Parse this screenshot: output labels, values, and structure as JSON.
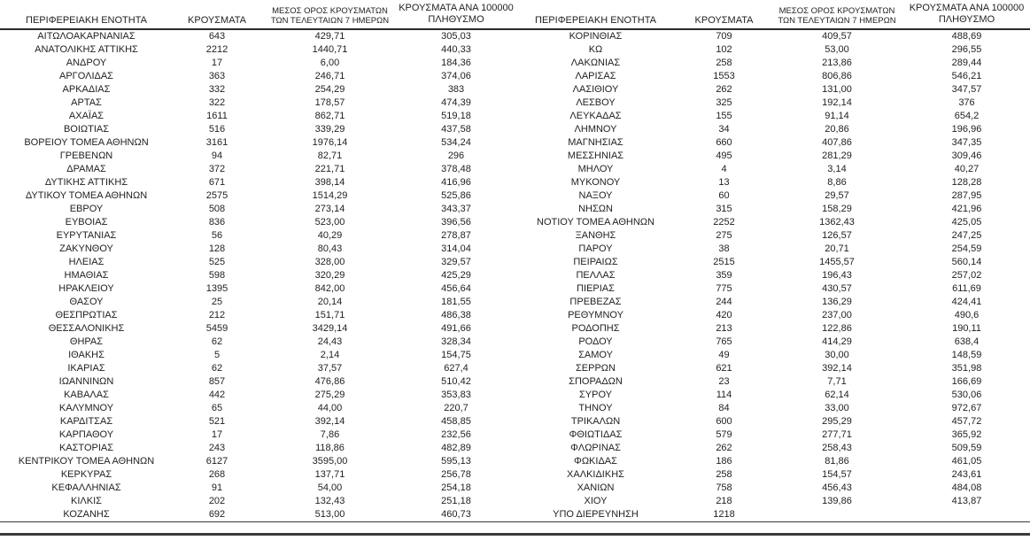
{
  "table": {
    "column_headers": {
      "region": "ΠΕΡΙΦΕΡΕΙΑΚΗ ΕΝΟΤΗΤΑ",
      "cases": "ΚΡΟΥΣΜΑΤΑ",
      "avg7_line1": "ΜΕΣΟΣ ΟΡΟΣ ΚΡΟΥΣΜΑΤΩΝ",
      "avg7_line2": "ΤΩΝ ΤΕΛΕΥΤΑΙΩΝ 7 ΗΜΕΡΩΝ",
      "per100k_line1": "ΚΡΟΥΣΜΑΤΑ ΑΝΑ 100000",
      "per100k_line2": "ΠΛΗΘΥΣΜΟ"
    },
    "left_rows": [
      [
        "ΑΙΤΩΛΟΑΚΑΡΝΑΝΙΑΣ",
        "643",
        "429,71",
        "305,03"
      ],
      [
        "ΑΝΑΤΟΛΙΚΗΣ ΑΤΤΙΚΗΣ",
        "2212",
        "1440,71",
        "440,33"
      ],
      [
        "ΑΝΔΡΟΥ",
        "17",
        "6,00",
        "184,36"
      ],
      [
        "ΑΡΓΟΛΙΔΑΣ",
        "363",
        "246,71",
        "374,06"
      ],
      [
        "ΑΡΚΑΔΙΑΣ",
        "332",
        "254,29",
        "383"
      ],
      [
        "ΑΡΤΑΣ",
        "322",
        "178,57",
        "474,39"
      ],
      [
        "ΑΧΑΪΑΣ",
        "1611",
        "862,71",
        "519,18"
      ],
      [
        "ΒΟΙΩΤΙΑΣ",
        "516",
        "339,29",
        "437,58"
      ],
      [
        "ΒΟΡΕΙΟΥ ΤΟΜΕΑ ΑΘΗΝΩΝ",
        "3161",
        "1976,14",
        "534,24"
      ],
      [
        "ΓΡΕΒΕΝΩΝ",
        "94",
        "82,71",
        "296"
      ],
      [
        "ΔΡΑΜΑΣ",
        "372",
        "221,71",
        "378,48"
      ],
      [
        "ΔΥΤΙΚΗΣ ΑΤΤΙΚΗΣ",
        "671",
        "398,14",
        "416,96"
      ],
      [
        "ΔΥΤΙΚΟΥ ΤΟΜΕΑ ΑΘΗΝΩΝ",
        "2575",
        "1514,29",
        "525,86"
      ],
      [
        "ΕΒΡΟΥ",
        "508",
        "273,14",
        "343,37"
      ],
      [
        "ΕΥΒΟΙΑΣ",
        "836",
        "523,00",
        "396,56"
      ],
      [
        "ΕΥΡΥΤΑΝΙΑΣ",
        "56",
        "40,29",
        "278,87"
      ],
      [
        "ΖΑΚΥΝΘΟΥ",
        "128",
        "80,43",
        "314,04"
      ],
      [
        "ΗΛΕΙΑΣ",
        "525",
        "328,00",
        "329,57"
      ],
      [
        "ΗΜΑΘΙΑΣ",
        "598",
        "320,29",
        "425,29"
      ],
      [
        "ΗΡΑΚΛΕΙΟΥ",
        "1395",
        "842,00",
        "456,64"
      ],
      [
        "ΘΑΣΟΥ",
        "25",
        "20,14",
        "181,55"
      ],
      [
        "ΘΕΣΠΡΩΤΙΑΣ",
        "212",
        "151,71",
        "486,38"
      ],
      [
        "ΘΕΣΣΑΛΟΝΙΚΗΣ",
        "5459",
        "3429,14",
        "491,66"
      ],
      [
        "ΘΗΡΑΣ",
        "62",
        "24,43",
        "328,34"
      ],
      [
        "ΙΘΑΚΗΣ",
        "5",
        "2,14",
        "154,75"
      ],
      [
        "ΙΚΑΡΙΑΣ",
        "62",
        "37,57",
        "627,4"
      ],
      [
        "ΙΩΑΝΝΙΝΩΝ",
        "857",
        "476,86",
        "510,42"
      ],
      [
        "ΚΑΒΑΛΑΣ",
        "442",
        "275,29",
        "353,83"
      ],
      [
        "ΚΑΛΥΜΝΟΥ",
        "65",
        "44,00",
        "220,7"
      ],
      [
        "ΚΑΡΔΙΤΣΑΣ",
        "521",
        "392,14",
        "458,85"
      ],
      [
        "ΚΑΡΠΑΘΟΥ",
        "17",
        "7,86",
        "232,56"
      ],
      [
        "ΚΑΣΤΟΡΙΑΣ",
        "243",
        "118,86",
        "482,89"
      ],
      [
        "ΚΕΝΤΡΙΚΟΥ ΤΟΜΕΑ ΑΘΗΝΩΝ",
        "6127",
        "3595,00",
        "595,13"
      ],
      [
        "ΚΕΡΚΥΡΑΣ",
        "268",
        "137,71",
        "256,78"
      ],
      [
        "ΚΕΦΑΛΛΗΝΙΑΣ",
        "91",
        "54,00",
        "254,18"
      ],
      [
        "ΚΙΛΚΙΣ",
        "202",
        "132,43",
        "251,18"
      ],
      [
        "ΚΟΖΑΝΗΣ",
        "692",
        "513,00",
        "460,73"
      ]
    ],
    "right_rows": [
      [
        "ΚΟΡΙΝΘΙΑΣ",
        "709",
        "409,57",
        "488,69"
      ],
      [
        "ΚΩ",
        "102",
        "53,00",
        "296,55"
      ],
      [
        "ΛΑΚΩΝΙΑΣ",
        "258",
        "213,86",
        "289,44"
      ],
      [
        "ΛΑΡΙΣΑΣ",
        "1553",
        "806,86",
        "546,21"
      ],
      [
        "ΛΑΣΙΘΙΟΥ",
        "262",
        "131,00",
        "347,57"
      ],
      [
        "ΛΕΣΒΟΥ",
        "325",
        "192,14",
        "376"
      ],
      [
        "ΛΕΥΚΑΔΑΣ",
        "155",
        "91,14",
        "654,2"
      ],
      [
        "ΛΗΜΝΟΥ",
        "34",
        "20,86",
        "196,96"
      ],
      [
        "ΜΑΓΝΗΣΙΑΣ",
        "660",
        "407,86",
        "347,35"
      ],
      [
        "ΜΕΣΣΗΝΙΑΣ",
        "495",
        "281,29",
        "309,46"
      ],
      [
        "ΜΗΛΟΥ",
        "4",
        "3,14",
        "40,27"
      ],
      [
        "ΜΥΚΟΝΟΥ",
        "13",
        "8,86",
        "128,28"
      ],
      [
        "ΝΑΞΟΥ",
        "60",
        "29,57",
        "287,95"
      ],
      [
        "ΝΗΣΩΝ",
        "315",
        "158,29",
        "421,96"
      ],
      [
        "ΝΟΤΙΟΥ ΤΟΜΕΑ ΑΘΗΝΩΝ",
        "2252",
        "1362,43",
        "425,05"
      ],
      [
        "ΞΑΝΘΗΣ",
        "275",
        "126,57",
        "247,25"
      ],
      [
        "ΠΑΡΟΥ",
        "38",
        "20,71",
        "254,59"
      ],
      [
        "ΠΕΙΡΑΙΩΣ",
        "2515",
        "1455,57",
        "560,14"
      ],
      [
        "ΠΕΛΛΑΣ",
        "359",
        "196,43",
        "257,02"
      ],
      [
        "ΠΙΕΡΙΑΣ",
        "775",
        "430,57",
        "611,69"
      ],
      [
        "ΠΡΕΒΕΖΑΣ",
        "244",
        "136,29",
        "424,41"
      ],
      [
        "ΡΕΘΥΜΝΟΥ",
        "420",
        "237,00",
        "490,6"
      ],
      [
        "ΡΟΔΟΠΗΣ",
        "213",
        "122,86",
        "190,11"
      ],
      [
        "ΡΟΔΟΥ",
        "765",
        "414,29",
        "638,4"
      ],
      [
        "ΣΑΜΟΥ",
        "49",
        "30,00",
        "148,59"
      ],
      [
        "ΣΕΡΡΩΝ",
        "621",
        "392,14",
        "351,98"
      ],
      [
        "ΣΠΟΡΑΔΩΝ",
        "23",
        "7,71",
        "166,69"
      ],
      [
        "ΣΥΡΟΥ",
        "114",
        "62,14",
        "530,06"
      ],
      [
        "ΤΗΝΟΥ",
        "84",
        "33,00",
        "972,67"
      ],
      [
        "ΤΡΙΚΑΛΩΝ",
        "600",
        "295,29",
        "457,72"
      ],
      [
        "ΦΘΙΩΤΙΔΑΣ",
        "579",
        "277,71",
        "365,92"
      ],
      [
        "ΦΛΩΡΙΝΑΣ",
        "262",
        "258,43",
        "509,59"
      ],
      [
        "ΦΩΚΙΔΑΣ",
        "186",
        "81,86",
        "461,05"
      ],
      [
        "ΧΑΛΚΙΔΙΚΗΣ",
        "258",
        "154,57",
        "243,61"
      ],
      [
        "ΧΑΝΙΩΝ",
        "758",
        "456,43",
        "484,08"
      ],
      [
        "ΧΙΟΥ",
        "218",
        "139,86",
        "413,87"
      ],
      [
        "ΥΠΟ ΔΙΕΡΕΥΝΗΣΗ",
        "1218",
        "",
        ""
      ]
    ]
  }
}
